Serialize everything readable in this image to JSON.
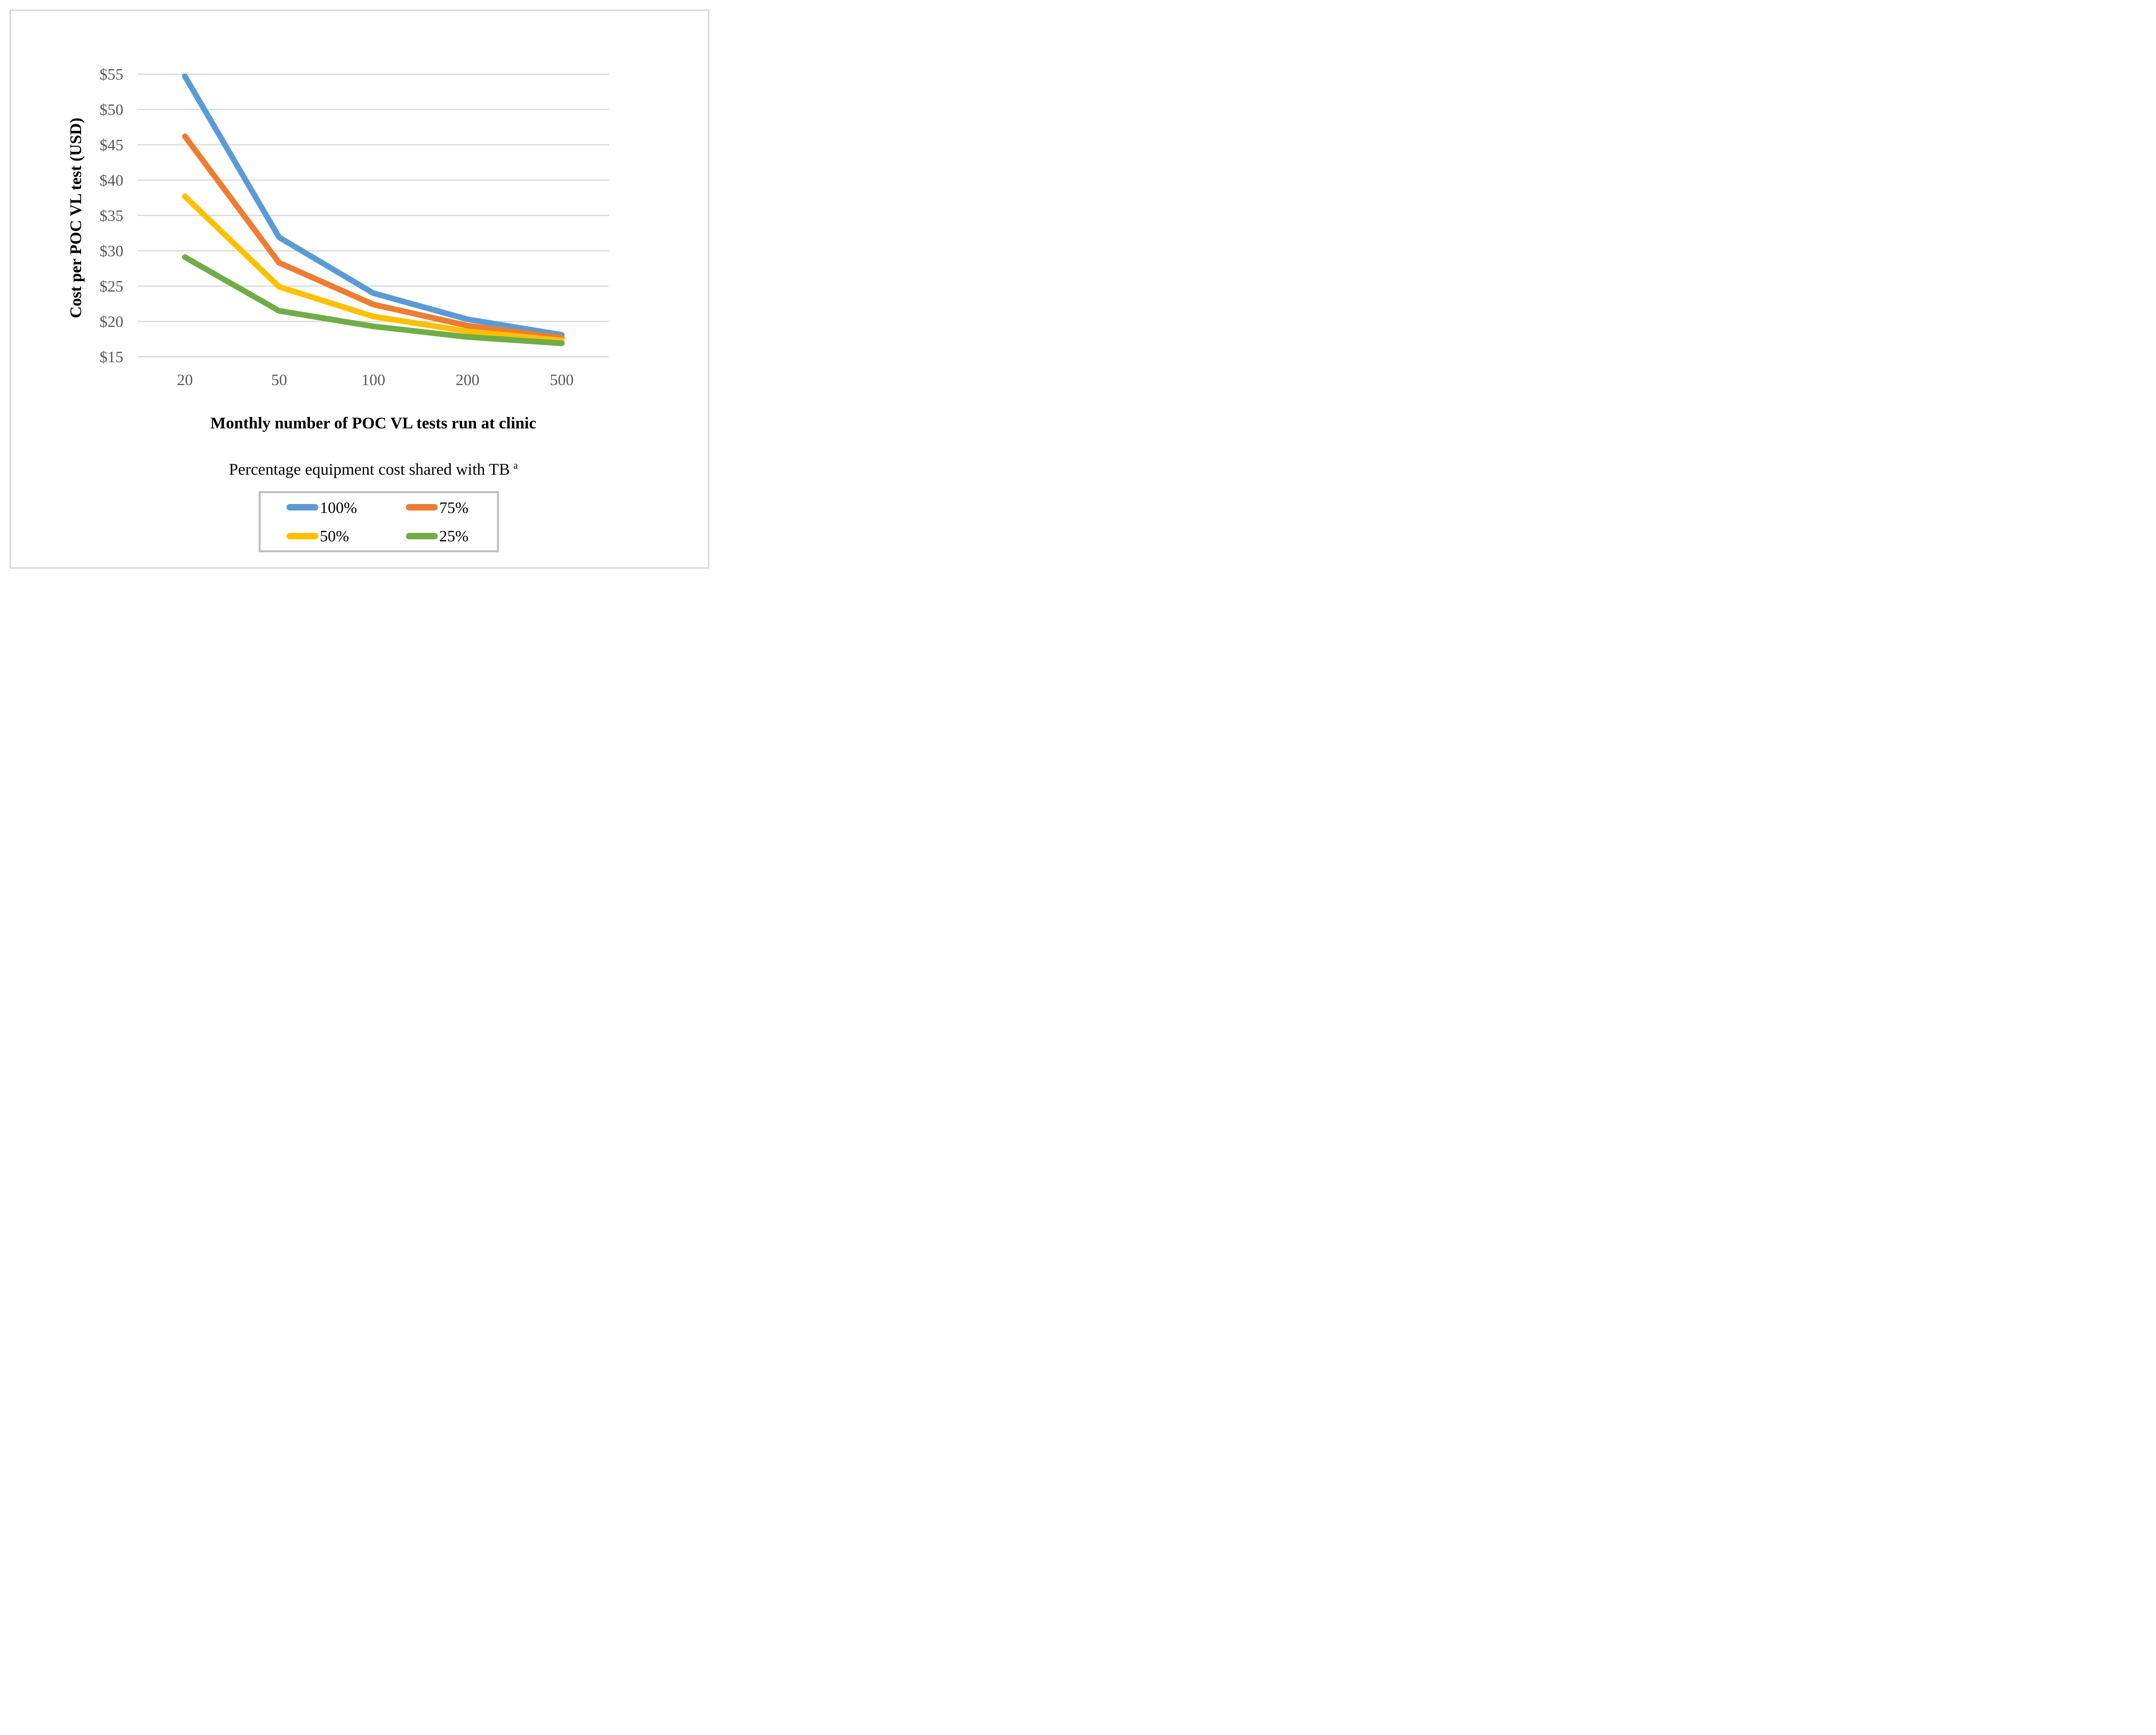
{
  "chart_data": {
    "type": "line",
    "title": "",
    "xlabel": "Monthly number of POC VL tests run at clinic",
    "ylabel": "Cost per POC VL test (USD)",
    "categories": [
      "20",
      "50",
      "100",
      "200",
      "500"
    ],
    "ylim": [
      15,
      55
    ],
    "ytick_step": 5,
    "ytick_labels": [
      "$15",
      "$20",
      "$25",
      "$30",
      "$35",
      "$40",
      "$45",
      "$50",
      "$55"
    ],
    "grid": "horizontal-only",
    "legend_position": "bottom-box",
    "series": [
      {
        "name": "100%",
        "color": "#5B9BD5",
        "values": [
          54.7,
          31.9,
          24.0,
          20.3,
          18.1
        ]
      },
      {
        "name": "75%",
        "color": "#ED7D31",
        "values": [
          46.2,
          28.3,
          22.4,
          19.4,
          17.7
        ]
      },
      {
        "name": "50%",
        "color": "#FFC000",
        "values": [
          37.7,
          24.9,
          20.7,
          18.6,
          17.3
        ]
      },
      {
        "name": "25%",
        "color": "#70AD47",
        "values": [
          29.1,
          21.5,
          19.3,
          17.8,
          16.9
        ]
      }
    ]
  },
  "legend": {
    "title": "Percentage equipment cost shared with TB",
    "superscript": "a"
  },
  "colors": {
    "gridline": "#d9d9d9",
    "tick_label": "#595959",
    "axis_title": "#000000",
    "figure_border": "#d9d9d9",
    "legend_border": "#bfbfbf"
  }
}
